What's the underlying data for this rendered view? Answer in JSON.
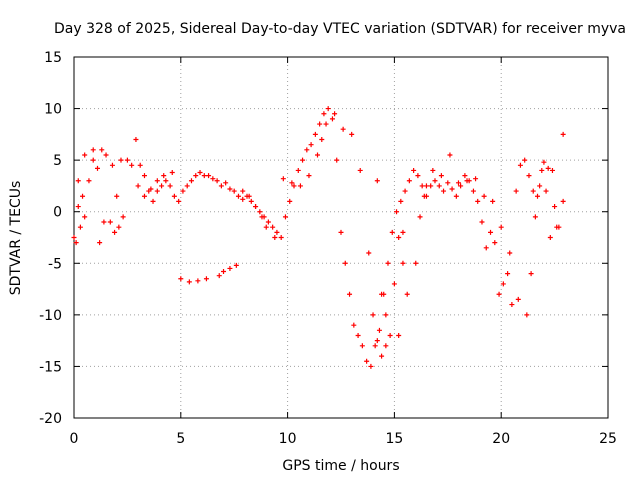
{
  "chart_data": {
    "type": "scatter",
    "title": "Day 328 of 2025, Sidereal Day-to-day VTEC variation (SDTVAR) for receiver myva",
    "xlabel": "GPS time / hours",
    "ylabel": "SDTVAR / TECUs",
    "xlim": [
      0,
      25
    ],
    "ylim": [
      -20,
      15
    ],
    "x_ticks": [
      0,
      5,
      10,
      15,
      20,
      25
    ],
    "x_tick_labels": [
      "0",
      "5",
      "10",
      "15",
      "20",
      "25"
    ],
    "y_ticks": [
      -20,
      -15,
      -10,
      -5,
      0,
      5,
      10,
      15
    ],
    "y_tick_labels": [
      "-20",
      "-15",
      "-10",
      "-5",
      "0",
      "5",
      "10",
      "15"
    ],
    "grid": true,
    "marker": "+",
    "color": "#ff0000",
    "series": [
      {
        "name": "SDTVAR",
        "x": [
          0.0,
          0.1,
          0.2,
          0.3,
          0.4,
          0.5,
          0.7,
          0.9,
          1.1,
          1.3,
          1.5,
          1.7,
          1.9,
          2.1,
          2.3,
          2.5,
          2.7,
          2.9,
          3.1,
          3.3,
          3.5,
          3.7,
          3.9,
          4.1,
          4.3,
          4.5,
          4.7,
          4.9,
          5.1,
          5.3,
          5.5,
          5.7,
          5.9,
          6.1,
          6.3,
          6.5,
          6.7,
          6.9,
          7.1,
          7.3,
          7.5,
          7.7,
          7.9,
          8.1,
          8.3,
          8.5,
          8.7,
          8.9,
          9.1,
          9.3,
          9.5,
          9.7,
          9.9,
          10.1,
          10.3,
          10.5,
          10.7,
          10.9,
          11.1,
          11.3,
          11.5,
          11.7,
          11.9,
          12.1,
          12.3,
          12.5,
          12.7,
          12.9,
          13.1,
          13.3,
          13.5,
          13.7,
          13.9,
          14.1,
          14.3,
          14.5,
          14.7,
          14.9,
          15.1,
          15.3,
          15.5,
          15.7,
          15.9,
          16.1,
          16.3,
          16.5,
          16.7,
          16.9,
          17.1,
          17.3,
          17.5,
          17.7,
          17.9,
          18.1,
          18.3,
          18.5,
          18.7,
          18.9,
          19.1,
          19.3,
          19.5,
          19.7,
          19.9,
          20.1,
          20.3,
          20.5,
          20.7,
          20.9,
          21.1,
          21.3,
          21.5,
          21.7,
          21.9,
          22.1,
          22.3,
          22.5,
          22.7,
          22.9,
          0.2,
          0.5,
          0.9,
          1.2,
          1.4,
          1.8,
          2.0,
          2.2,
          3.0,
          3.3,
          3.6,
          3.9,
          4.2,
          4.6,
          5.0,
          5.4,
          5.8,
          6.2,
          6.8,
          7.0,
          7.3,
          7.6,
          7.9,
          8.2,
          8.5,
          8.8,
          9.0,
          9.4,
          9.8,
          10.2,
          10.6,
          11.0,
          11.4,
          11.6,
          11.8,
          12.2,
          12.6,
          13.0,
          13.4,
          13.8,
          14.0,
          14.2,
          14.4,
          14.6,
          14.8,
          15.0,
          15.2,
          15.4,
          15.6,
          16.0,
          16.4,
          16.8,
          17.2,
          17.6,
          18.0,
          18.4,
          18.8,
          19.2,
          19.6,
          20.0,
          20.4,
          20.8,
          21.2,
          21.4,
          21.6,
          21.8,
          22.0,
          22.2,
          22.4,
          22.6,
          22.9,
          14.2,
          14.4,
          14.6,
          15.4,
          15.2,
          16.2,
          16.5
        ],
        "y": [
          -2.5,
          -3.0,
          0.5,
          -1.5,
          1.5,
          -0.5,
          3.0,
          5.0,
          4.2,
          6.0,
          5.5,
          -1.0,
          -2.0,
          -1.5,
          -0.5,
          5.0,
          4.5,
          7.0,
          4.5,
          3.5,
          2.0,
          1.0,
          2.0,
          2.5,
          3.0,
          2.5,
          1.5,
          1.0,
          2.0,
          2.5,
          3.0,
          3.5,
          3.8,
          3.5,
          3.5,
          3.2,
          3.0,
          2.5,
          2.8,
          2.2,
          2.0,
          1.5,
          1.2,
          1.5,
          1.0,
          0.5,
          0.0,
          -0.5,
          -1.0,
          -1.5,
          -2.0,
          -2.5,
          -0.5,
          1.0,
          2.5,
          4.0,
          5.0,
          6.0,
          6.5,
          7.5,
          8.5,
          9.5,
          10.0,
          9.0,
          5.0,
          -2.0,
          -5.0,
          -8.0,
          -11.0,
          -12.0,
          -13.0,
          -14.5,
          -15.0,
          -13.0,
          -11.5,
          -8.0,
          -5.0,
          -2.0,
          0.0,
          1.0,
          2.0,
          3.0,
          4.0,
          3.5,
          2.5,
          1.5,
          2.5,
          3.0,
          2.5,
          2.0,
          2.8,
          2.2,
          1.5,
          2.5,
          3.5,
          3.0,
          2.0,
          1.0,
          -1.0,
          -3.5,
          -2.0,
          -3.0,
          -8.0,
          -7.0,
          -6.0,
          -9.0,
          2.0,
          4.5,
          5.0,
          3.5,
          2.0,
          1.5,
          4.0,
          2.0,
          -2.5,
          0.5,
          -1.5,
          1.0,
          3.0,
          5.5,
          6.0,
          -3.0,
          -1.0,
          4.5,
          1.5,
          5.0,
          2.5,
          1.5,
          2.2,
          3.0,
          3.5,
          3.8,
          -6.5,
          -6.8,
          -6.7,
          -6.5,
          -6.2,
          -5.8,
          -5.5,
          -5.2,
          2.0,
          1.5,
          0.5,
          -0.5,
          -1.5,
          -2.5,
          3.2,
          2.8,
          2.5,
          3.5,
          5.5,
          7.0,
          8.5,
          9.5,
          8.0,
          7.5,
          4.0,
          -4.0,
          -10.0,
          -12.5,
          -14.0,
          -13.0,
          -12.0,
          -7.0,
          -2.5,
          -5.0,
          -8.0,
          -5.0,
          1.5,
          4.0,
          3.5,
          5.5,
          2.8,
          3.0,
          3.2,
          1.5,
          1.0,
          -1.5,
          -4.0,
          -8.5,
          -10.0,
          -6.0,
          -0.5,
          2.5,
          4.8,
          4.2,
          4.0,
          -1.5,
          7.5,
          3.0,
          -8.0,
          -10.0,
          -2.0,
          -12.0,
          -0.5,
          2.5
        ]
      }
    ]
  }
}
